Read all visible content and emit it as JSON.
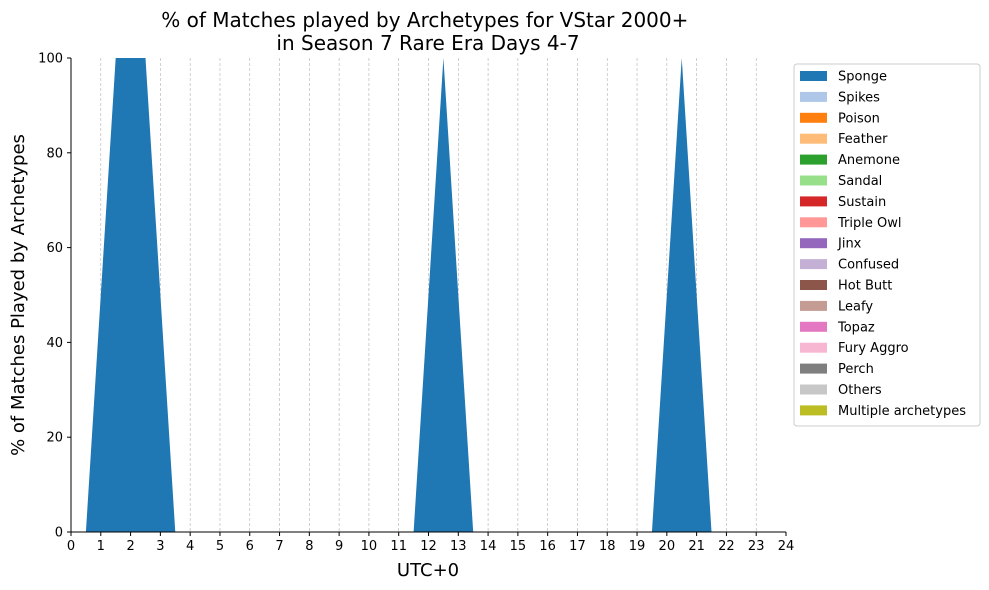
{
  "chart_data": {
    "type": "area",
    "title": "% of Matches played by Archetypes for VStar 2000+\nin Season 7 Rare Era Days 4-7",
    "title_lines": [
      "% of Matches played by Archetypes for VStar 2000+",
      "in Season 7 Rare Era Days 4-7"
    ],
    "xlabel": "UTC+0",
    "ylabel": "% of Matches Played by Archetypes",
    "xlim": [
      0,
      24
    ],
    "ylim": [
      0,
      100
    ],
    "x_ticks": [
      0,
      1,
      2,
      3,
      4,
      5,
      6,
      7,
      8,
      9,
      10,
      11,
      12,
      13,
      14,
      15,
      16,
      17,
      18,
      19,
      20,
      21,
      22,
      23,
      24
    ],
    "y_ticks": [
      0,
      20,
      40,
      60,
      80,
      100
    ],
    "grid": "vertical dashed at each hour",
    "legend_position": "outside-right",
    "x": [
      0.5,
      1.5,
      2.5,
      3.5,
      4.5,
      5.5,
      6.5,
      7.5,
      8.5,
      9.5,
      10.5,
      11.5,
      12.5,
      13.5,
      14.5,
      15.5,
      16.5,
      17.5,
      18.5,
      19.5,
      20.5,
      21.5,
      22.5,
      23.5
    ],
    "series": [
      {
        "name": "Sponge",
        "color": "#1f77b4",
        "values": [
          0,
          100,
          100,
          0,
          0,
          0,
          0,
          0,
          0,
          0,
          0,
          0,
          100,
          0,
          0,
          0,
          0,
          0,
          0,
          0,
          100,
          0,
          0,
          0
        ]
      },
      {
        "name": "Spikes",
        "color": "#aec7e8",
        "values": [
          0,
          0,
          0,
          0,
          0,
          0,
          0,
          0,
          0,
          0,
          0,
          0,
          0,
          0,
          0,
          0,
          0,
          0,
          0,
          0,
          0,
          0,
          0,
          0
        ]
      },
      {
        "name": "Poison",
        "color": "#ff7f0e",
        "values": [
          0,
          0,
          0,
          0,
          0,
          0,
          0,
          0,
          0,
          0,
          0,
          0,
          0,
          0,
          0,
          0,
          0,
          0,
          0,
          0,
          0,
          0,
          0,
          0
        ]
      },
      {
        "name": "Feather",
        "color": "#ffbb78",
        "values": [
          0,
          0,
          0,
          0,
          0,
          0,
          0,
          0,
          0,
          0,
          0,
          0,
          0,
          0,
          0,
          0,
          0,
          0,
          0,
          0,
          0,
          0,
          0,
          0
        ]
      },
      {
        "name": "Anemone",
        "color": "#2ca02c",
        "values": [
          0,
          0,
          0,
          0,
          0,
          0,
          0,
          0,
          0,
          0,
          0,
          0,
          0,
          0,
          0,
          0,
          0,
          0,
          0,
          0,
          0,
          0,
          0,
          0
        ]
      },
      {
        "name": "Sandal",
        "color": "#98df8a",
        "values": [
          0,
          0,
          0,
          0,
          0,
          0,
          0,
          0,
          0,
          0,
          0,
          0,
          0,
          0,
          0,
          0,
          0,
          0,
          0,
          0,
          0,
          0,
          0,
          0
        ]
      },
      {
        "name": "Sustain",
        "color": "#d62728",
        "values": [
          0,
          0,
          0,
          0,
          0,
          0,
          0,
          0,
          0,
          0,
          0,
          0,
          0,
          0,
          0,
          0,
          0,
          0,
          0,
          0,
          0,
          0,
          0,
          0
        ]
      },
      {
        "name": "Triple Owl",
        "color": "#ff9896",
        "values": [
          0,
          0,
          0,
          0,
          0,
          0,
          0,
          0,
          0,
          0,
          0,
          0,
          0,
          0,
          0,
          0,
          0,
          0,
          0,
          0,
          0,
          0,
          0,
          0
        ]
      },
      {
        "name": "Jinx",
        "color": "#9467bd",
        "values": [
          0,
          0,
          0,
          0,
          0,
          0,
          0,
          0,
          0,
          0,
          0,
          0,
          0,
          0,
          0,
          0,
          0,
          0,
          0,
          0,
          0,
          0,
          0,
          0
        ]
      },
      {
        "name": "Confused",
        "color": "#c5b0d5",
        "values": [
          0,
          0,
          0,
          0,
          0,
          0,
          0,
          0,
          0,
          0,
          0,
          0,
          0,
          0,
          0,
          0,
          0,
          0,
          0,
          0,
          0,
          0,
          0,
          0
        ]
      },
      {
        "name": "Hot Butt",
        "color": "#8c564b",
        "values": [
          0,
          0,
          0,
          0,
          0,
          0,
          0,
          0,
          0,
          0,
          0,
          0,
          0,
          0,
          0,
          0,
          0,
          0,
          0,
          0,
          0,
          0,
          0,
          0
        ]
      },
      {
        "name": "Leafy",
        "color": "#c49c94",
        "values": [
          0,
          0,
          0,
          0,
          0,
          0,
          0,
          0,
          0,
          0,
          0,
          0,
          0,
          0,
          0,
          0,
          0,
          0,
          0,
          0,
          0,
          0,
          0,
          0
        ]
      },
      {
        "name": "Topaz",
        "color": "#e377c2",
        "values": [
          0,
          0,
          0,
          0,
          0,
          0,
          0,
          0,
          0,
          0,
          0,
          0,
          0,
          0,
          0,
          0,
          0,
          0,
          0,
          0,
          0,
          0,
          0,
          0
        ]
      },
      {
        "name": "Fury Aggro",
        "color": "#f7b6d2",
        "values": [
          0,
          0,
          0,
          0,
          0,
          0,
          0,
          0,
          0,
          0,
          0,
          0,
          0,
          0,
          0,
          0,
          0,
          0,
          0,
          0,
          0,
          0,
          0,
          0
        ]
      },
      {
        "name": "Perch",
        "color": "#7f7f7f",
        "values": [
          0,
          0,
          0,
          0,
          0,
          0,
          0,
          0,
          0,
          0,
          0,
          0,
          0,
          0,
          0,
          0,
          0,
          0,
          0,
          0,
          0,
          0,
          0,
          0
        ]
      },
      {
        "name": "Others",
        "color": "#c7c7c7",
        "values": [
          0,
          0,
          0,
          0,
          0,
          0,
          0,
          0,
          0,
          0,
          0,
          0,
          0,
          0,
          0,
          0,
          0,
          0,
          0,
          0,
          0,
          0,
          0,
          0
        ]
      },
      {
        "name": "Multiple archetypes",
        "color": "#bcbd22",
        "values": [
          0,
          0,
          0,
          0,
          0,
          0,
          0,
          0,
          0,
          0,
          0,
          0,
          0,
          0,
          0,
          0,
          0,
          0,
          0,
          0,
          0,
          0,
          0,
          0
        ]
      }
    ]
  }
}
